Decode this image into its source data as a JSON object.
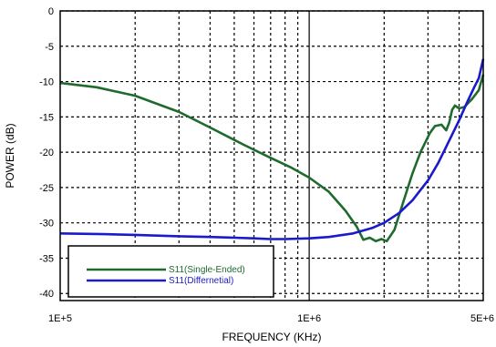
{
  "chart_data": {
    "type": "line",
    "xlabel": "FREQUENCY (KHz)",
    "ylabel": "POWER (dB)",
    "x_scale": "log",
    "xlim": [
      100000,
      5000000
    ],
    "ylim": [
      -41,
      0
    ],
    "x_ticks": [
      {
        "value": 100000,
        "label": "1E+5"
      },
      {
        "value": 1000000,
        "label": "1E+6"
      },
      {
        "value": 5000000,
        "label": "5E+6"
      }
    ],
    "y_ticks": [
      {
        "value": 0,
        "label": "0"
      },
      {
        "value": -5,
        "label": "-5"
      },
      {
        "value": -10,
        "label": "-10"
      },
      {
        "value": -15,
        "label": "-15"
      },
      {
        "value": -20,
        "label": "-20"
      },
      {
        "value": -25,
        "label": "-25"
      },
      {
        "value": -30,
        "label": "-30"
      },
      {
        "value": -35,
        "label": "-35"
      },
      {
        "value": -40,
        "label": "-40"
      }
    ],
    "grid": true,
    "legend_position": "bottom-left",
    "series": [
      {
        "name": "S11(Single-Ended)",
        "color": "#1f6b2e",
        "x": [
          100000,
          140000,
          200000,
          300000,
          400000,
          550000,
          700000,
          850000,
          1000000,
          1200000,
          1400000,
          1550000,
          1650000,
          1750000,
          1850000,
          1950000,
          2050000,
          2200000,
          2400000,
          2600000,
          2800000,
          3050000,
          3200000,
          3400000,
          3550000,
          3650000,
          3750000,
          3850000,
          4000000,
          4200000,
          4500000,
          4800000,
          5000000
        ],
        "y": [
          -10.2,
          -10.8,
          -12.0,
          -14.3,
          -16.5,
          -19.0,
          -20.8,
          -22.2,
          -23.6,
          -25.6,
          -28.3,
          -30.5,
          -32.4,
          -32.1,
          -32.6,
          -32.3,
          -32.6,
          -31.0,
          -26.8,
          -23.0,
          -20.0,
          -17.3,
          -16.3,
          -16.1,
          -16.9,
          -15.8,
          -14.0,
          -13.4,
          -13.8,
          -13.6,
          -12.5,
          -11.2,
          -9.0
        ]
      },
      {
        "name": "S11(Differnetial)",
        "color": "#1a1acc",
        "x": [
          100000,
          150000,
          200000,
          300000,
          400000,
          500000,
          600000,
          700000,
          800000,
          1000000,
          1200000,
          1500000,
          1800000,
          2000000,
          2300000,
          2600000,
          3000000,
          3300000,
          3600000,
          4000000,
          4300000,
          4600000,
          4800000,
          5000000
        ],
        "y": [
          -31.5,
          -31.6,
          -31.7,
          -31.9,
          -32.0,
          -32.1,
          -32.2,
          -32.3,
          -32.3,
          -32.2,
          -32.0,
          -31.5,
          -30.7,
          -30.0,
          -28.6,
          -26.8,
          -24.0,
          -21.5,
          -18.8,
          -15.5,
          -13.0,
          -10.8,
          -9.5,
          -6.8
        ]
      }
    ]
  }
}
